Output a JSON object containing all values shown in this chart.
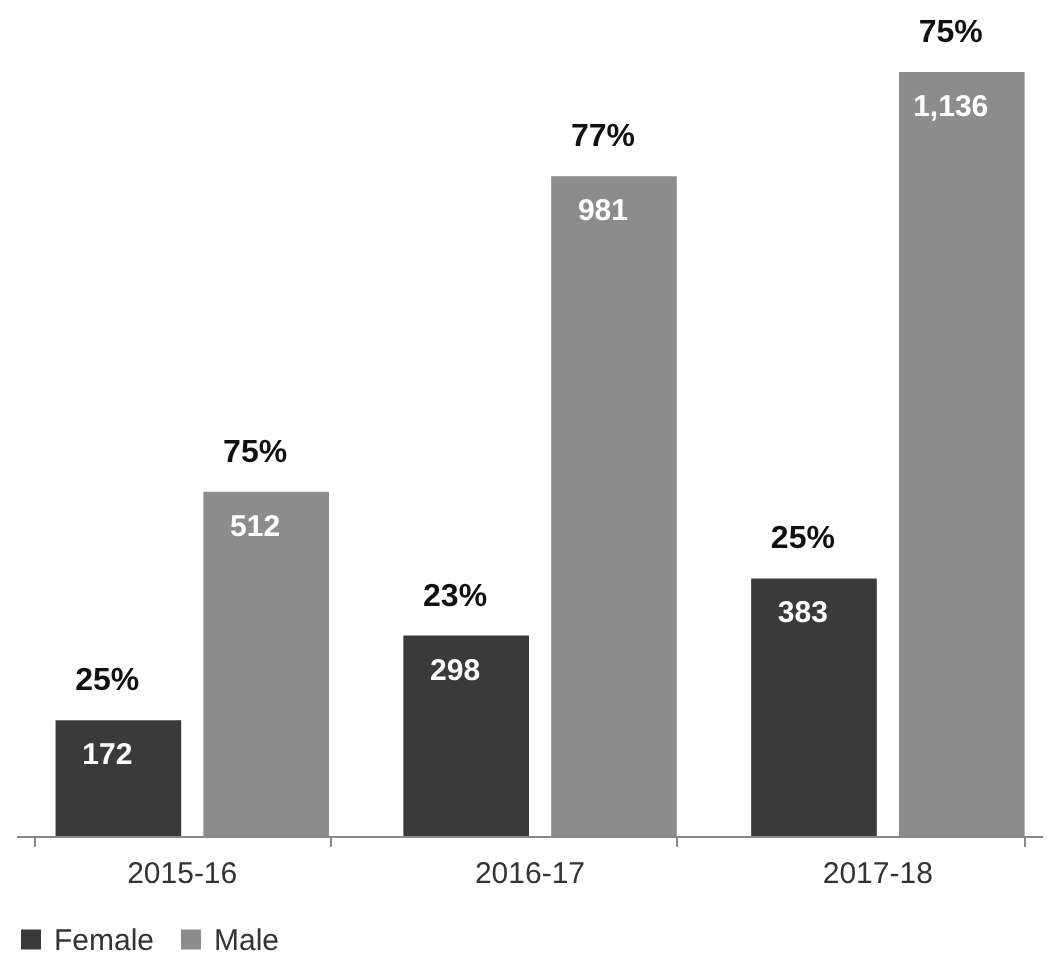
{
  "chart_data": {
    "type": "bar",
    "categories": [
      "2015-16",
      "2016-17",
      "2017-18"
    ],
    "series": [
      {
        "name": "Female",
        "color": "#3a3a3a",
        "values": [
          172,
          298,
          383
        ],
        "value_labels": [
          "172",
          "298",
          "383"
        ]
      },
      {
        "name": "Male",
        "color": "#8c8c8c",
        "values": [
          512,
          981,
          1136
        ],
        "value_labels": [
          "512",
          "981",
          "1,136"
        ]
      }
    ],
    "annotations": [
      "25%",
      "75%",
      "23%",
      "77%",
      "25%",
      "75%"
    ],
    "legend": "bottom",
    "grid": false
  }
}
